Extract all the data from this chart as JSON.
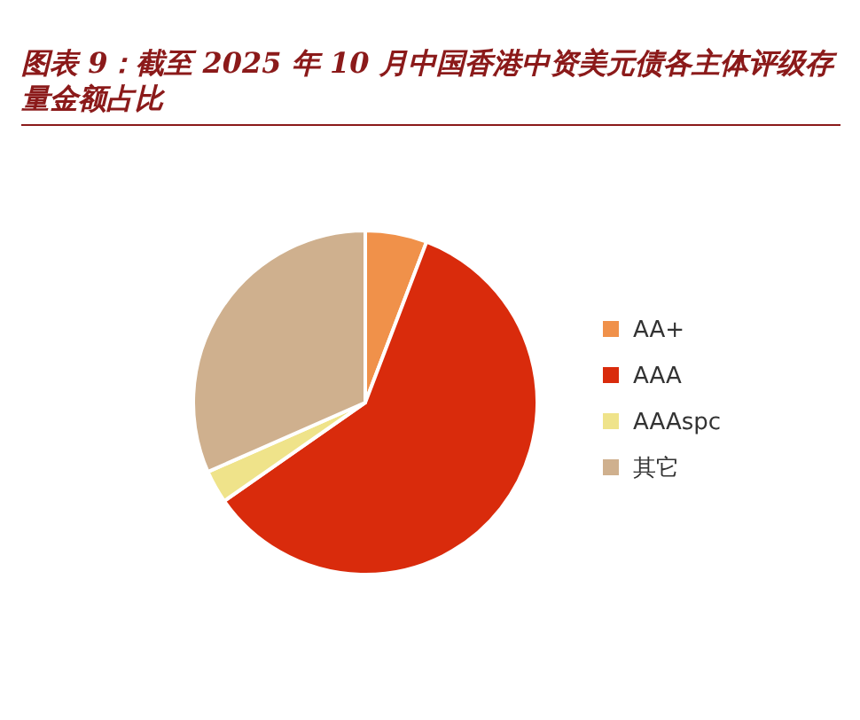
{
  "chart_data": {
    "type": "pie",
    "title": "图表 9：截至 2025 年 10 月中国香港中资美元债各主体评级存量金额占比",
    "categories": [
      "AA+",
      "AAA",
      "AAAspc",
      "其它"
    ],
    "values": [
      5.8,
      59.5,
      3.1,
      31.6
    ],
    "colors": [
      "#f0914a",
      "#d92b0c",
      "#efe38a",
      "#cfb08e"
    ],
    "legend": "right"
  }
}
